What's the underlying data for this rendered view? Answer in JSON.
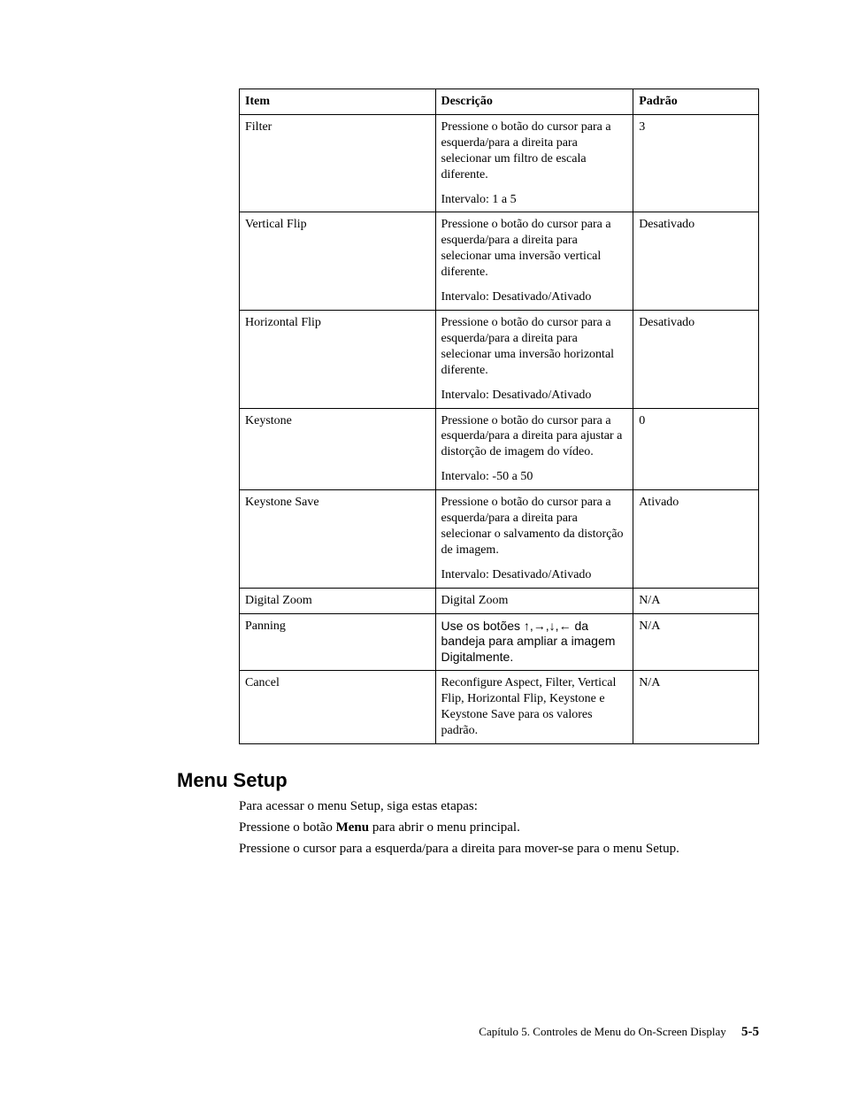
{
  "table": {
    "headers": {
      "item": "Item",
      "desc": "Descrição",
      "def": "Padrão"
    },
    "rows": [
      {
        "item": "Filter",
        "desc_main": "Pressione o botão do cursor para a esquerda/para a direita para selecionar um filtro de escala diferente.",
        "desc_range": "Intervalo: 1 a 5",
        "def": "3"
      },
      {
        "item": "Vertical Flip",
        "desc_main": "Pressione o botão do cursor para a esquerda/para a direita para selecionar uma inversão vertical diferente.",
        "desc_range": "Intervalo: Desativado/Ativado",
        "def": "Desativado"
      },
      {
        "item": "Horizontal Flip",
        "desc_main": "Pressione o botão do cursor para a esquerda/para a direita para selecionar uma inversão horizontal diferente.",
        "desc_range": "Intervalo: Desativado/Ativado",
        "def": "Desativado"
      },
      {
        "item": "Keystone",
        "desc_main": "Pressione o botão do cursor para a esquerda/para a direita para ajustar a distorção de imagem do vídeo.",
        "desc_range": "Intervalo: -50 a 50",
        "def": "0"
      },
      {
        "item": "Keystone Save",
        "desc_main": "Pressione o botão do cursor para a esquerda/para a direita para selecionar o salvamento da distorção de imagem.",
        "desc_range": "Intervalo: Desativado/Ativado",
        "def": "Ativado"
      },
      {
        "item": "Digital Zoom",
        "desc_main": "Digital Zoom",
        "desc_range": "",
        "def": "N/A"
      },
      {
        "item": "Panning",
        "desc_main": "Use os botões ↑,→,↓,← da bandeja para ampliar a imagem Digitalmente.",
        "desc_range": "",
        "def": "N/A"
      },
      {
        "item": "Cancel",
        "desc_main": "Reconfigure Aspect, Filter, Vertical Flip, Horizontal Flip, Keystone e Keystone Save para os valores padrão.",
        "desc_range": "",
        "def": "N/A"
      }
    ]
  },
  "section": {
    "heading": "Menu Setup",
    "intro": "Para acessar o menu Setup, siga estas etapas:",
    "step1_pre": "Pressione o botão ",
    "step1_bold": "Menu",
    "step1_post": " para abrir o menu principal.",
    "step2": "Pressione o cursor para a esquerda/para a direita para mover-se para o menu Setup."
  },
  "footer": {
    "chapter": "Capítulo 5. Controles de Menu do On-Screen Display",
    "page": "5-5"
  }
}
